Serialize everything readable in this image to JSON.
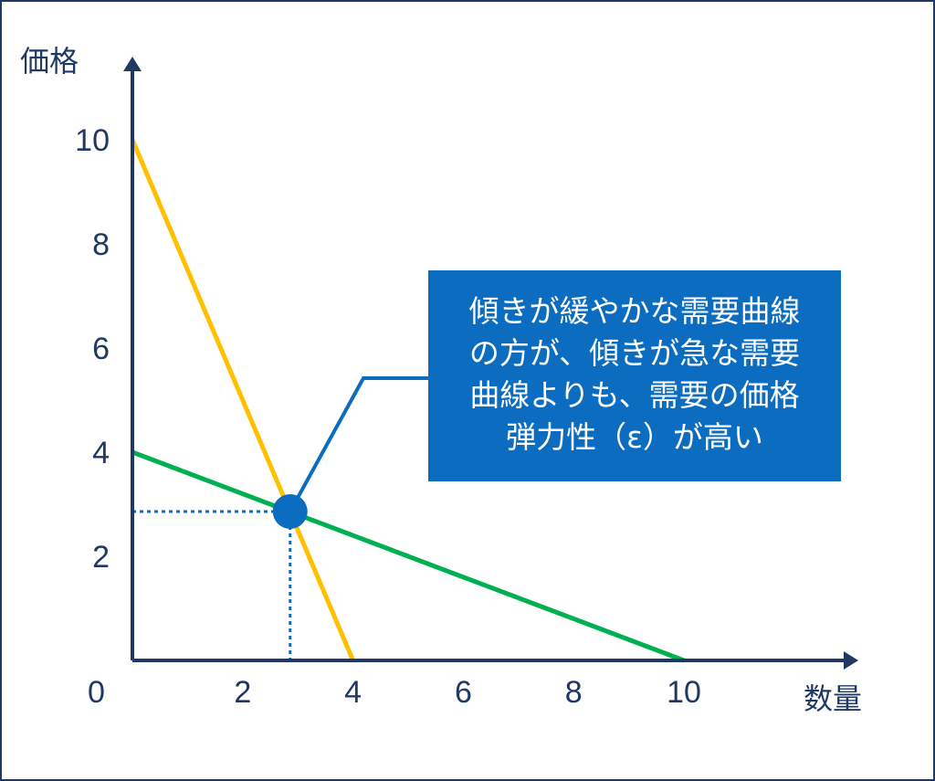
{
  "chart_data": {
    "type": "line",
    "title": "",
    "xlabel": "数量",
    "ylabel": "価格",
    "xlim": [
      0,
      10
    ],
    "ylim": [
      0,
      10
    ],
    "origin_label": "0",
    "x_ticks": [
      2,
      4,
      6,
      8,
      10
    ],
    "y_ticks": [
      2,
      4,
      6,
      8,
      10
    ],
    "grid": false,
    "series": [
      {
        "color": "#ffc000",
        "points": [
          [
            0,
            10
          ],
          [
            4,
            0
          ]
        ]
      },
      {
        "color": "#00b050",
        "points": [
          [
            0,
            4
          ],
          [
            10,
            0
          ]
        ]
      }
    ],
    "intersection": {
      "x": 2.86,
      "y": 2.86,
      "color": "#0b6cc0"
    },
    "annotation": {
      "text": "傾きが緩やかな需要曲線\nの方が、傾きが急な需要\n曲線よりも、需要の価格\n弾力性（ε）が高い",
      "background": "#0b6cc0",
      "text_color": "#ffffff"
    },
    "axis_color": "#1f3864"
  }
}
